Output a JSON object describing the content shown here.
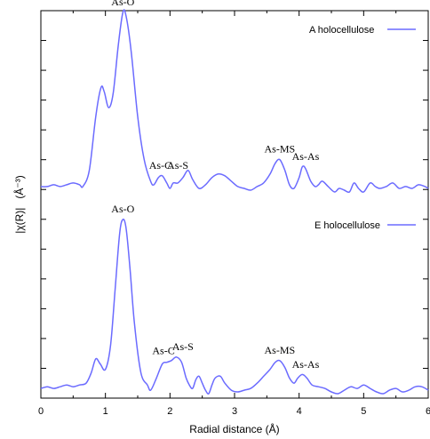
{
  "chart_data": {
    "type": "line",
    "xlabel": "Radial distance (Å)",
    "ylabel": "|χ(R)| (Å⁻³)",
    "ylabel_main": "|χ(R)|",
    "ylabel_unit": "(Å⁻³)",
    "xlim": [
      0,
      6
    ],
    "x_ticks": [
      "0",
      "1",
      "2",
      "3",
      "4",
      "5",
      "6"
    ],
    "grid": false,
    "legend_position": "top-right (per panel)",
    "line_color": "#6b6bff",
    "series": [
      {
        "name": "A holocellulose",
        "points": [
          [
            0.0,
            0.03
          ],
          [
            0.1,
            0.03
          ],
          [
            0.2,
            0.04
          ],
          [
            0.3,
            0.03
          ],
          [
            0.4,
            0.04
          ],
          [
            0.5,
            0.05
          ],
          [
            0.6,
            0.04
          ],
          [
            0.65,
            0.03
          ],
          [
            0.75,
            0.12
          ],
          [
            0.85,
            0.42
          ],
          [
            0.93,
            0.58
          ],
          [
            0.98,
            0.56
          ],
          [
            1.05,
            0.47
          ],
          [
            1.12,
            0.55
          ],
          [
            1.2,
            0.82
          ],
          [
            1.27,
            1.0
          ],
          [
            1.32,
            0.98
          ],
          [
            1.4,
            0.78
          ],
          [
            1.5,
            0.42
          ],
          [
            1.6,
            0.18
          ],
          [
            1.7,
            0.06
          ],
          [
            1.75,
            0.04
          ],
          [
            1.82,
            0.08
          ],
          [
            1.88,
            0.09
          ],
          [
            1.95,
            0.05
          ],
          [
            2.0,
            0.02
          ],
          [
            2.05,
            0.05
          ],
          [
            2.12,
            0.05
          ],
          [
            2.2,
            0.08
          ],
          [
            2.28,
            0.12
          ],
          [
            2.35,
            0.07
          ],
          [
            2.45,
            0.02
          ],
          [
            2.55,
            0.04
          ],
          [
            2.65,
            0.08
          ],
          [
            2.75,
            0.1
          ],
          [
            2.85,
            0.09
          ],
          [
            2.95,
            0.06
          ],
          [
            3.05,
            0.03
          ],
          [
            3.15,
            0.02
          ],
          [
            3.25,
            0.01
          ],
          [
            3.35,
            0.03
          ],
          [
            3.45,
            0.05
          ],
          [
            3.55,
            0.1
          ],
          [
            3.63,
            0.16
          ],
          [
            3.7,
            0.18
          ],
          [
            3.78,
            0.12
          ],
          [
            3.85,
            0.04
          ],
          [
            3.92,
            0.02
          ],
          [
            4.0,
            0.08
          ],
          [
            4.05,
            0.14
          ],
          [
            4.1,
            0.13
          ],
          [
            4.18,
            0.06
          ],
          [
            4.25,
            0.03
          ],
          [
            4.3,
            0.04
          ],
          [
            4.36,
            0.06
          ],
          [
            4.45,
            0.03
          ],
          [
            4.55,
            0.0
          ],
          [
            4.62,
            0.02
          ],
          [
            4.7,
            0.01
          ],
          [
            4.78,
            0.0
          ],
          [
            4.85,
            0.05
          ],
          [
            4.92,
            0.02
          ],
          [
            5.0,
            0.0
          ],
          [
            5.1,
            0.05
          ],
          [
            5.18,
            0.03
          ],
          [
            5.25,
            0.02
          ],
          [
            5.35,
            0.03
          ],
          [
            5.45,
            0.05
          ],
          [
            5.55,
            0.02
          ],
          [
            5.65,
            0.03
          ],
          [
            5.75,
            0.02
          ],
          [
            5.85,
            0.04
          ],
          [
            5.95,
            0.03
          ],
          [
            6.0,
            0.02
          ]
        ]
      },
      {
        "name": "E holocellulose",
        "points": [
          [
            0.0,
            0.03
          ],
          [
            0.1,
            0.04
          ],
          [
            0.2,
            0.03
          ],
          [
            0.3,
            0.04
          ],
          [
            0.4,
            0.05
          ],
          [
            0.5,
            0.04
          ],
          [
            0.6,
            0.05
          ],
          [
            0.7,
            0.06
          ],
          [
            0.78,
            0.12
          ],
          [
            0.85,
            0.2
          ],
          [
            0.92,
            0.17
          ],
          [
            1.0,
            0.14
          ],
          [
            1.08,
            0.28
          ],
          [
            1.15,
            0.6
          ],
          [
            1.22,
            0.92
          ],
          [
            1.27,
            1.0
          ],
          [
            1.32,
            0.95
          ],
          [
            1.38,
            0.72
          ],
          [
            1.45,
            0.4
          ],
          [
            1.55,
            0.12
          ],
          [
            1.65,
            0.05
          ],
          [
            1.7,
            0.02
          ],
          [
            1.78,
            0.08
          ],
          [
            1.88,
            0.17
          ],
          [
            1.95,
            0.18
          ],
          [
            2.02,
            0.19
          ],
          [
            2.1,
            0.21
          ],
          [
            2.18,
            0.18
          ],
          [
            2.25,
            0.09
          ],
          [
            2.3,
            0.05
          ],
          [
            2.35,
            0.03
          ],
          [
            2.4,
            0.08
          ],
          [
            2.45,
            0.1
          ],
          [
            2.5,
            0.06
          ],
          [
            2.55,
            0.02
          ],
          [
            2.6,
            0.0
          ],
          [
            2.65,
            0.05
          ],
          [
            2.7,
            0.09
          ],
          [
            2.78,
            0.1
          ],
          [
            2.85,
            0.06
          ],
          [
            2.95,
            0.02
          ],
          [
            3.05,
            0.01
          ],
          [
            3.15,
            0.02
          ],
          [
            3.25,
            0.03
          ],
          [
            3.35,
            0.06
          ],
          [
            3.45,
            0.1
          ],
          [
            3.55,
            0.14
          ],
          [
            3.63,
            0.18
          ],
          [
            3.7,
            0.19
          ],
          [
            3.78,
            0.15
          ],
          [
            3.85,
            0.09
          ],
          [
            3.92,
            0.06
          ],
          [
            3.98,
            0.09
          ],
          [
            4.05,
            0.11
          ],
          [
            4.12,
            0.09
          ],
          [
            4.2,
            0.05
          ],
          [
            4.3,
            0.04
          ],
          [
            4.4,
            0.03
          ],
          [
            4.5,
            0.01
          ],
          [
            4.6,
            0.0
          ],
          [
            4.7,
            0.02
          ],
          [
            4.8,
            0.04
          ],
          [
            4.9,
            0.03
          ],
          [
            5.0,
            0.05
          ],
          [
            5.1,
            0.03
          ],
          [
            5.2,
            0.01
          ],
          [
            5.3,
            0.0
          ],
          [
            5.4,
            0.02
          ],
          [
            5.5,
            0.03
          ],
          [
            5.6,
            0.01
          ],
          [
            5.7,
            0.02
          ],
          [
            5.8,
            0.04
          ],
          [
            5.9,
            0.04
          ],
          [
            6.0,
            0.02
          ]
        ]
      }
    ],
    "annotations": [
      {
        "series": 0,
        "label": "As-O",
        "x": 1.27
      },
      {
        "series": 0,
        "label": "As-C",
        "x": 1.85
      },
      {
        "series": 0,
        "label": "As-S",
        "x": 2.12
      },
      {
        "series": 0,
        "label": "As-MS",
        "x": 3.7
      },
      {
        "series": 0,
        "label": "As-As",
        "x": 4.1
      },
      {
        "series": 1,
        "label": "As-O",
        "x": 1.27
      },
      {
        "series": 1,
        "label": "As-C",
        "x": 1.9
      },
      {
        "series": 1,
        "label": "As-S",
        "x": 2.2
      },
      {
        "series": 1,
        "label": "As-MS",
        "x": 3.7
      },
      {
        "series": 1,
        "label": "As-As",
        "x": 4.1
      }
    ]
  }
}
